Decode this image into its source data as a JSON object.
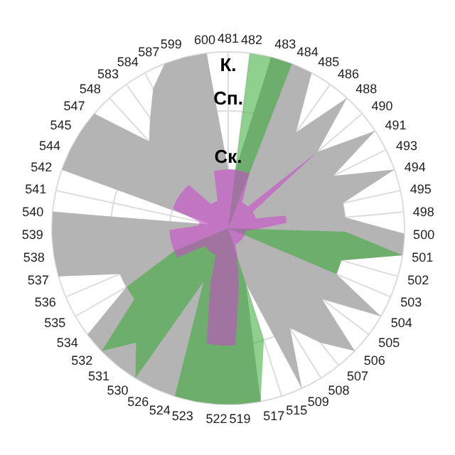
{
  "chart_data": {
    "type": "radar",
    "categories": [
      "481",
      "482",
      "483",
      "484",
      "485",
      "486",
      "488",
      "490",
      "491",
      "493",
      "494",
      "495",
      "498",
      "500",
      "501",
      "502",
      "503",
      "504",
      "505",
      "506",
      "507",
      "508",
      "509",
      "515",
      "517",
      "519",
      "522",
      "523",
      "524",
      "526",
      "530",
      "531",
      "532",
      "534",
      "535",
      "536",
      "537",
      "538",
      "539",
      "540",
      "541",
      "542",
      "544",
      "545",
      "547",
      "548",
      "583",
      "584",
      "587",
      "599",
      "600"
    ],
    "ylim": [
      0,
      3
    ],
    "yticks": [
      {
        "value": 1,
        "label": "Ск."
      },
      {
        "value": 2,
        "label": "Сп."
      },
      {
        "value": 3,
        "label": "К."
      }
    ],
    "grid": true,
    "series": [
      {
        "color": "#b4b4b4",
        "values": [
          1,
          1,
          3,
          3,
          3,
          2,
          3,
          2,
          3,
          2,
          3,
          2,
          2,
          3,
          3,
          2,
          2,
          3,
          2,
          3,
          2.5,
          2,
          3,
          1,
          3,
          3,
          3,
          3,
          3,
          3,
          3,
          3,
          3,
          3,
          2,
          2,
          3,
          3,
          3,
          3,
          0.3,
          3,
          3,
          3,
          3,
          2,
          2.3,
          2.7,
          3,
          3,
          3
        ]
      },
      {
        "color": "#33aa33",
        "values": [
          0,
          3,
          3,
          3,
          0,
          0,
          0,
          0,
          0,
          0,
          0,
          0,
          0,
          2,
          3,
          2,
          2,
          0,
          0,
          0,
          0,
          0,
          0,
          2,
          3,
          3,
          3,
          3,
          3,
          1,
          3,
          2.5,
          3,
          2,
          2,
          1,
          0,
          0,
          0,
          0,
          3,
          0,
          0,
          0,
          2,
          0,
          0,
          0,
          2,
          0,
          0
        ]
      },
      {
        "color": "#cc44cc",
        "values": [
          1,
          1,
          1,
          1,
          0.5,
          0.5,
          0.5,
          2,
          0.5,
          0.5,
          0.5,
          1,
          1,
          0.5,
          0.3,
          0.3,
          0.3,
          0.3,
          0.3,
          0.3,
          0.3,
          0.3,
          0.3,
          0.5,
          1,
          2,
          2,
          2,
          1,
          0.5,
          0.5,
          0.5,
          0.5,
          0.5,
          1,
          1,
          1,
          1,
          1,
          0.5,
          0.5,
          1,
          1,
          1,
          1,
          1,
          0.5,
          0.5,
          0.5,
          1,
          1
        ]
      }
    ]
  }
}
